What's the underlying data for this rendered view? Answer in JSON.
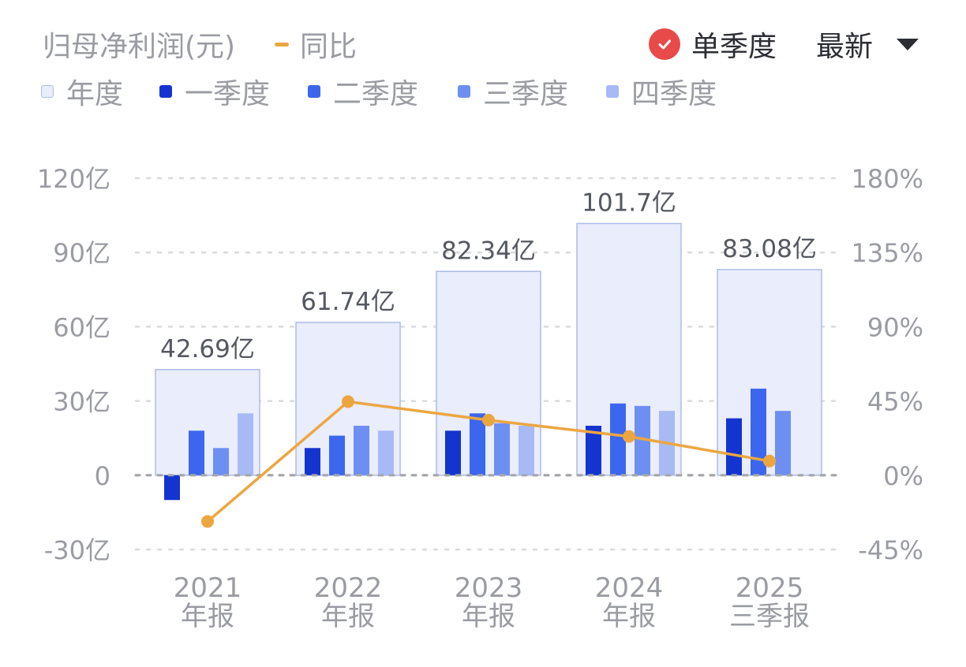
{
  "header": {
    "title": "归母净利润(元)",
    "yoy_label": "同比",
    "toggle_label": "单季度",
    "latest_label": "最新"
  },
  "legend": {
    "items": [
      {
        "label": "年度",
        "color": "#e9edfc",
        "border": "#aebbe6"
      },
      {
        "label": "一季度",
        "color": "#1434d0"
      },
      {
        "label": "二季度",
        "color": "#3c66ee"
      },
      {
        "label": "三季度",
        "color": "#6e8ff2"
      },
      {
        "label": "四季度",
        "color": "#a7baf6"
      }
    ]
  },
  "colors": {
    "yoy_line": "#eca640",
    "check_red": "#e84a4a",
    "grid": "#d9dadd",
    "zero_line": "#a5a7ab",
    "axis_text": "#9a9ca2",
    "label_text": "#555860",
    "annual_fill": "#e9edfc",
    "annual_border": "#aebbe6"
  },
  "chart_data": {
    "type": "bar",
    "categories": [
      [
        "2021",
        "年报"
      ],
      [
        "2022",
        "年报"
      ],
      [
        "2023",
        "年报"
      ],
      [
        "2024",
        "年报"
      ],
      [
        "2025",
        "三季报"
      ]
    ],
    "annual": {
      "values": [
        42.69,
        61.74,
        82.34,
        101.7,
        83.08
      ],
      "labels": [
        "42.69亿",
        "61.74亿",
        "82.34亿",
        "101.7亿",
        "83.08亿"
      ]
    },
    "quarterly": [
      [
        -10,
        18,
        11,
        25
      ],
      [
        11,
        16,
        20,
        18
      ],
      [
        18,
        25,
        21,
        20
      ],
      [
        20,
        29,
        28,
        26
      ],
      [
        23,
        35,
        26,
        null
      ]
    ],
    "yoy": [
      -28,
      44.6,
      33.4,
      23.5,
      8.6
    ],
    "y_left": {
      "ticks": [
        120,
        90,
        60,
        30,
        0,
        -30
      ],
      "tick_labels": [
        "120亿",
        "90亿",
        "60亿",
        "30亿",
        "0",
        "-30亿"
      ],
      "range": [
        -30,
        120
      ]
    },
    "y_right": {
      "ticks": [
        180,
        135,
        90,
        45,
        0,
        -45
      ],
      "tick_labels": [
        "180%",
        "135%",
        "90%",
        "45%",
        "0%",
        "-45%"
      ],
      "range": [
        -45,
        180
      ]
    }
  }
}
